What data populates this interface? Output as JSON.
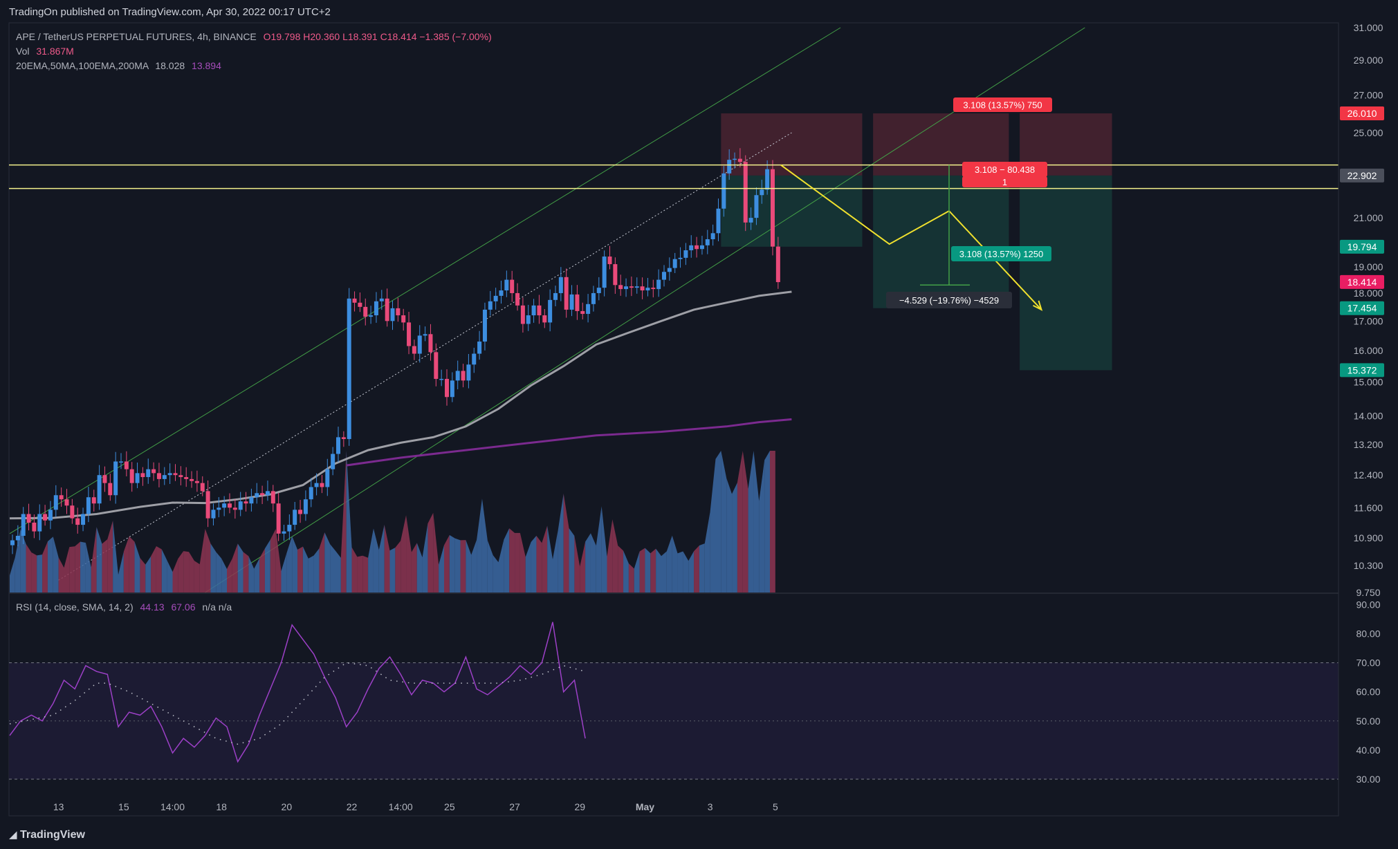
{
  "header": {
    "published": "TradingOn published on TradingView.com, Apr 30, 2022 00:17 UTC+2"
  },
  "legend": {
    "symbol": "APE / TetherUS PERPETUAL FUTURES, 4h, BINANCE",
    "ohlc": "O19.798  H20.360  L18.391  C18.414  −1.385 (−7.00%)",
    "vol_label": "Vol",
    "vol_value": "31.867M",
    "ma_label": "20EMA,50MA,100EMA,200MA",
    "ma_value_1": "18.028",
    "ma_value_2": "13.894",
    "rsi_label": "RSI (14, close, SMA, 14, 2)",
    "rsi_value": "44.13",
    "rsi_sma": "67.06",
    "rsi_na": "n/a  n/a"
  },
  "footer": {
    "brand": "TradingView"
  },
  "colors": {
    "background": "#131722",
    "bull": "#3d8ee0",
    "bear": "#e94a7a",
    "channel": "#43a047",
    "level": "#f4f18c",
    "path": "#f0e12e",
    "ema": "#9e9fa6",
    "ma200": "#7b2a8f",
    "rsi": "#9c40c7",
    "vol_bull": "#3c6aa4",
    "vol_bear": "#8e3552"
  },
  "chart_data": {
    "type": "candlestick",
    "title": "APE / TetherUS PERPETUAL FUTURES, 4h, BINANCE",
    "price_scale": "log",
    "price_range": [
      9.75,
      31.0
    ],
    "price_ticks": [
      "31.000",
      "29.000",
      "27.000",
      "25.000",
      "21.000",
      "19.000",
      "18.000",
      "17.000",
      "16.000",
      "15.000",
      "14.000",
      "13.200",
      "12.400",
      "11.600",
      "10.900",
      "10.300",
      "9.750"
    ],
    "price_tick_values": [
      31.0,
      29.0,
      27.0,
      25.0,
      21.0,
      19.0,
      18.0,
      17.0,
      16.0,
      15.0,
      14.0,
      13.2,
      12.4,
      11.6,
      10.9,
      10.3,
      9.75
    ],
    "time_range": [
      0,
      165
    ],
    "time_labels": [
      {
        "t": 9,
        "label": "13"
      },
      {
        "t": 21,
        "label": "15"
      },
      {
        "t": 30,
        "label": "14:00"
      },
      {
        "t": 39,
        "label": "18"
      },
      {
        "t": 51,
        "label": "20"
      },
      {
        "t": 63,
        "label": "22"
      },
      {
        "t": 72,
        "label": "14:00"
      },
      {
        "t": 81,
        "label": "25"
      },
      {
        "t": 93,
        "label": "27"
      },
      {
        "t": 105,
        "label": "29"
      },
      {
        "t": 117,
        "label": "May"
      },
      {
        "t": 129,
        "label": "3"
      },
      {
        "t": 141,
        "label": "5"
      }
    ],
    "closes": [
      10.85,
      10.95,
      11.45,
      11.25,
      11.05,
      11.45,
      11.3,
      11.55,
      11.9,
      11.8,
      11.65,
      11.35,
      11.2,
      11.45,
      11.85,
      11.7,
      12.4,
      12.2,
      11.9,
      12.75,
      12.75,
      12.55,
      12.2,
      12.45,
      12.35,
      12.55,
      12.45,
      12.3,
      12.4,
      12.45,
      12.4,
      12.35,
      12.3,
      12.25,
      12.2,
      12.0,
      11.35,
      11.55,
      11.6,
      11.7,
      11.6,
      11.55,
      11.75,
      11.7,
      11.85,
      11.95,
      11.9,
      12.0,
      11.7,
      11.0,
      11.05,
      11.2,
      11.55,
      11.45,
      11.8,
      12.1,
      12.2,
      12.1,
      12.55,
      12.95,
      13.4,
      13.35,
      17.8,
      17.65,
      17.5,
      17.15,
      17.2,
      17.7,
      17.8,
      17.0,
      17.45,
      17.2,
      16.95,
      16.15,
      15.9,
      16.5,
      16.55,
      15.95,
      15.1,
      15.1,
      14.55,
      15.05,
      15.35,
      15.05,
      15.55,
      15.9,
      16.3,
      17.4,
      17.7,
      17.9,
      18.1,
      18.5,
      18.0,
      17.55,
      16.9,
      17.2,
      17.55,
      17.2,
      16.95,
      17.75,
      18.0,
      18.6,
      17.4,
      17.95,
      17.35,
      17.25,
      17.6,
      18.0,
      18.2,
      19.4,
      19.1,
      18.3,
      18.15,
      18.25,
      18.2,
      18.25,
      18.1,
      18.2,
      18.15,
      18.5,
      18.8,
      18.95,
      19.3,
      19.35,
      19.65,
      19.85,
      19.7,
      19.85,
      20.1,
      20.35,
      21.4,
      23.0,
      23.65,
      23.7,
      23.55,
      20.8,
      21.0,
      22.0,
      22.25,
      23.2,
      19.8,
      18.41
    ],
    "volume_scale": [
      0,
      10
    ],
    "ema_20": [
      [
        0,
        11.35
      ],
      [
        8,
        11.36
      ],
      [
        16,
        11.45
      ],
      [
        24,
        11.62
      ],
      [
        30,
        11.72
      ],
      [
        36,
        11.71
      ],
      [
        42,
        11.8
      ],
      [
        48,
        11.92
      ],
      [
        54,
        12.15
      ],
      [
        60,
        12.7
      ],
      [
        66,
        13.05
      ],
      [
        72,
        13.25
      ],
      [
        78,
        13.4
      ],
      [
        84,
        13.7
      ],
      [
        90,
        14.2
      ],
      [
        96,
        14.9
      ],
      [
        102,
        15.5
      ],
      [
        108,
        16.2
      ],
      [
        114,
        16.6
      ],
      [
        120,
        17.0
      ],
      [
        126,
        17.4
      ],
      [
        132,
        17.65
      ],
      [
        138,
        17.9
      ],
      [
        144,
        18.05
      ]
    ],
    "ma_200": [
      [
        62,
        12.65
      ],
      [
        72,
        12.85
      ],
      [
        84,
        13.05
      ],
      [
        96,
        13.25
      ],
      [
        108,
        13.45
      ],
      [
        120,
        13.55
      ],
      [
        132,
        13.7
      ],
      [
        138,
        13.82
      ],
      [
        144,
        13.9
      ]
    ],
    "channel_upper": [
      [
        0,
        11.0
      ],
      [
        153,
        31.0
      ]
    ],
    "channel_mid": [
      [
        9,
        10.0
      ],
      [
        144,
        25.0
      ]
    ],
    "channel_lower": [
      [
        36,
        9.75
      ],
      [
        198,
        31.0
      ]
    ],
    "horizontal_levels": [
      23.4,
      22.3
    ],
    "position_levels": {
      "stop": 26.01,
      "entry": 22.902,
      "target_1": 19.794,
      "target_2": 15.372,
      "close": 18.414,
      "mid": 17.454
    },
    "projection_path": [
      [
        142,
        23.4
      ],
      [
        162,
        19.9
      ],
      [
        173,
        21.3
      ],
      [
        190,
        17.4
      ]
    ],
    "price_labels": [
      {
        "value": 26.01,
        "text": "26.010",
        "kind": "red"
      },
      {
        "value": 22.902,
        "text": "22.902",
        "kind": "grey"
      },
      {
        "value": 19.794,
        "text": "19.794",
        "kind": "teal"
      },
      {
        "value": 18.414,
        "text": "18.414",
        "kind": "pink"
      },
      {
        "value": 17.454,
        "text": "17.454",
        "kind": "teal"
      },
      {
        "value": 15.372,
        "text": "15.372",
        "kind": "teal"
      }
    ],
    "annotations": [
      {
        "text": "3.108 (13.57%) 750",
        "kind": "red"
      },
      {
        "text": "3.108 − 80.438",
        "kind": "red"
      },
      {
        "text": "1",
        "kind": "red"
      },
      {
        "text": "3.108 (13.57%) 1250",
        "kind": "teal"
      },
      {
        "text": "−4.529 (−19.76%) −4529",
        "kind": "dark"
      }
    ],
    "rsi": {
      "range": [
        25,
        92
      ],
      "ticks": [
        "90.00",
        "80.00",
        "70.00",
        "60.00",
        "50.00",
        "40.00",
        "30.00"
      ],
      "tick_values": [
        90,
        80,
        70,
        60,
        50,
        40,
        30
      ],
      "band": [
        30,
        70
      ],
      "midline": 50,
      "values": [
        [
          0,
          45
        ],
        [
          2,
          50
        ],
        [
          4,
          52
        ],
        [
          6,
          50
        ],
        [
          8,
          56
        ],
        [
          10,
          64
        ],
        [
          12,
          61
        ],
        [
          14,
          69
        ],
        [
          16,
          67
        ],
        [
          18,
          66
        ],
        [
          20,
          48
        ],
        [
          22,
          53
        ],
        [
          24,
          52
        ],
        [
          26,
          55
        ],
        [
          28,
          48
        ],
        [
          30,
          39
        ],
        [
          32,
          44
        ],
        [
          34,
          41
        ],
        [
          36,
          45
        ],
        [
          38,
          51
        ],
        [
          40,
          48
        ],
        [
          42,
          36
        ],
        [
          44,
          42
        ],
        [
          46,
          52
        ],
        [
          48,
          61
        ],
        [
          50,
          70
        ],
        [
          52,
          83
        ],
        [
          54,
          78
        ],
        [
          56,
          73
        ],
        [
          58,
          65
        ],
        [
          60,
          58
        ],
        [
          62,
          48
        ],
        [
          64,
          53
        ],
        [
          66,
          61
        ],
        [
          68,
          68
        ],
        [
          70,
          72
        ],
        [
          72,
          66
        ],
        [
          74,
          59
        ],
        [
          76,
          64
        ],
        [
          78,
          63
        ],
        [
          80,
          60
        ],
        [
          82,
          63
        ],
        [
          84,
          72
        ],
        [
          86,
          61
        ],
        [
          88,
          59
        ],
        [
          90,
          62
        ],
        [
          92,
          65
        ],
        [
          94,
          69
        ],
        [
          96,
          66
        ],
        [
          98,
          70
        ],
        [
          100,
          84
        ],
        [
          102,
          60
        ],
        [
          104,
          64
        ],
        [
          106,
          44
        ]
      ],
      "sma": [
        [
          0,
          49
        ],
        [
          4,
          50.5
        ],
        [
          8,
          52
        ],
        [
          12,
          57
        ],
        [
          16,
          63
        ],
        [
          18,
          63
        ],
        [
          22,
          60
        ],
        [
          26,
          56
        ],
        [
          30,
          52
        ],
        [
          34,
          48
        ],
        [
          38,
          44
        ],
        [
          42,
          42
        ],
        [
          46,
          44
        ],
        [
          50,
          49
        ],
        [
          54,
          57
        ],
        [
          58,
          65
        ],
        [
          62,
          70
        ],
        [
          66,
          69
        ],
        [
          70,
          64
        ],
        [
          74,
          63
        ],
        [
          78,
          63
        ],
        [
          82,
          63
        ],
        [
          86,
          63
        ],
        [
          90,
          63
        ],
        [
          94,
          64
        ],
        [
          98,
          66
        ],
        [
          102,
          69
        ],
        [
          106,
          67
        ]
      ]
    }
  }
}
